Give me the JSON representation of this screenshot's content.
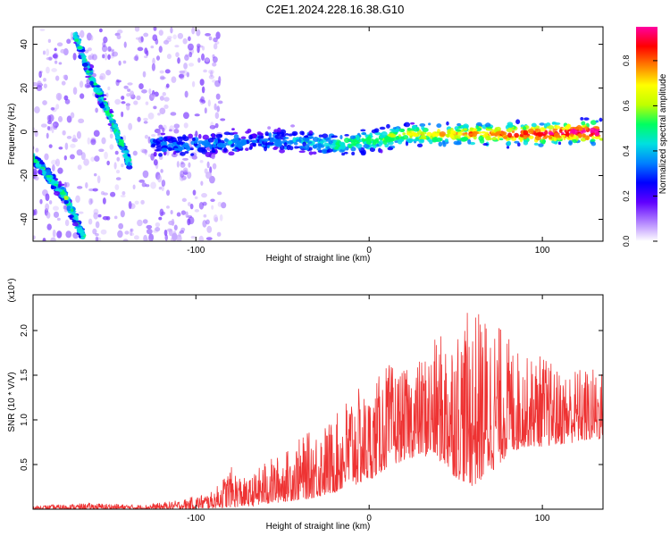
{
  "figure": {
    "title": "C2E1.2024.228.16.38.G10"
  },
  "chart_data": [
    {
      "type": "heatmap",
      "xlabel": "Height of straight line (km)",
      "ylabel": "Frequency (Hz)",
      "xlim": [
        -194,
        135
      ],
      "ylim": [
        -50,
        48
      ],
      "x_ticks": [
        -100,
        0,
        100
      ],
      "y_ticks": [
        -40,
        -20,
        0,
        20,
        40
      ],
      "colorbar": {
        "label": "Normalized spectral amplitude",
        "range": [
          0.0,
          0.95
        ],
        "ticks": [
          "0.0",
          "0.2",
          "0.4",
          "0.6",
          "0.8"
        ],
        "colormap": [
          "#ffffff",
          "#b080ff",
          "#6000ff",
          "#0000ff",
          "#0080ff",
          "#00e0e0",
          "#00ff60",
          "#c0ff00",
          "#ffff00",
          "#ff8000",
          "#ff0000",
          "#ff00a0"
        ]
      },
      "features": [
        {
          "name": "",
          "kind": "drifting track",
          "points": [
            [
              -196,
              -10
            ],
            [
              -175,
              -30
            ],
            [
              -165,
              -48
            ]
          ]
        },
        {
          "name": "",
          "kind": "drifting track",
          "points": [
            [
              -170,
              45
            ],
            [
              -160,
              24
            ],
            [
              -150,
              8
            ],
            [
              -143,
              -5
            ],
            [
              -138,
              -15
            ]
          ]
        },
        {
          "name": "",
          "kind": "horizontal band",
          "points": [
            [
              -125,
              -6
            ],
            [
              -100,
              -6
            ],
            [
              -80,
              -5
            ],
            [
              -60,
              -4
            ],
            [
              -40,
              -4
            ],
            [
              -20,
              -6
            ],
            [
              0,
              -4
            ],
            [
              10,
              -3
            ],
            [
              20,
              -1
            ],
            [
              40,
              -1
            ],
            [
              60,
              -1
            ],
            [
              80,
              -1
            ],
            [
              100,
              -1
            ],
            [
              120,
              0
            ],
            [
              135,
              0
            ]
          ]
        }
      ]
    },
    {
      "type": "line",
      "xlabel": "Height of straight line (km)",
      "ylabel": "SNR (10 * V/V)",
      "y_multiplier": "(x10⁴)",
      "xlim": [
        -194,
        135
      ],
      "ylim": [
        0,
        2.4
      ],
      "x_ticks": [
        -100,
        0,
        100
      ],
      "y_ticks": [
        "0.5",
        "1.0",
        "1.5",
        "2.0"
      ],
      "series": [
        {
          "color": "#ee3333",
          "envelope": {
            "x": [
              -194,
              -160,
              -130,
              -110,
              -90,
              -80,
              -70,
              -60,
              -50,
              -40,
              -30,
              -20,
              -10,
              0,
              10,
              20,
              30,
              40,
              50,
              60,
              70,
              80,
              90,
              100,
              110,
              120,
              135
            ],
            "low": [
              0.0,
              0.0,
              0.0,
              0.0,
              0.01,
              0.02,
              0.03,
              0.05,
              0.08,
              0.1,
              0.13,
              0.18,
              0.25,
              0.32,
              0.45,
              0.55,
              0.6,
              0.55,
              0.35,
              0.25,
              0.4,
              0.6,
              0.7,
              0.7,
              0.72,
              0.75,
              0.78
            ],
            "high": [
              0.04,
              0.07,
              0.05,
              0.1,
              0.2,
              0.48,
              0.32,
              0.55,
              0.62,
              0.8,
              0.92,
              1.02,
              1.38,
              1.3,
              1.65,
              1.55,
              1.7,
              1.95,
              2.1,
              2.25,
              2.2,
              1.95,
              1.7,
              1.75,
              1.55,
              1.6,
              1.58
            ]
          }
        }
      ]
    }
  ]
}
